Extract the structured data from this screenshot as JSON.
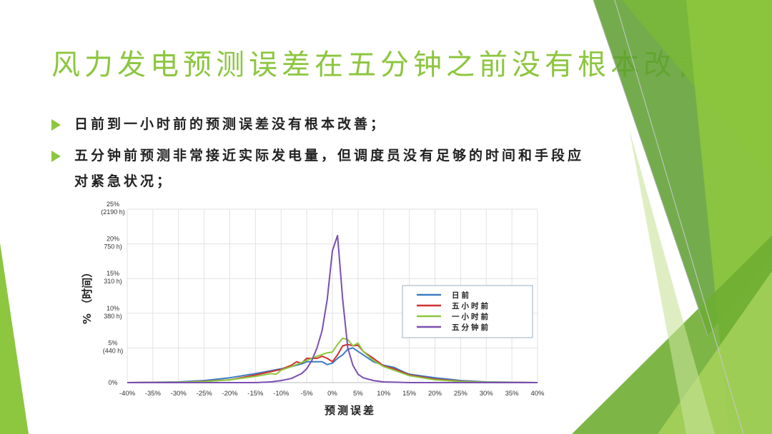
{
  "slide": {
    "title": "风力发电预测误差在五分钟之前没有根本改善",
    "bullets": [
      "日前到一小时前的预测误差没有根本改善；",
      "五分钟前预测非常接近实际发电量，但调度员没有足够的时间和手段应对紧急状况；"
    ],
    "accent": "#8dc63f"
  },
  "chart_data": {
    "type": "line",
    "title": "",
    "xlabel": "预测误差",
    "ylabel": "% （时间）",
    "xlim": [
      -40,
      40
    ],
    "ylim": [
      0,
      25
    ],
    "grid": true,
    "legend": "right",
    "x_ticks": [
      "-40%",
      "-35%",
      "-30%",
      "-25%",
      "-20%",
      "-15%",
      "-10%",
      "-5%",
      "0%",
      "5%",
      "10%",
      "15%",
      "20%",
      "25%",
      "30%",
      "35%",
      "40%"
    ],
    "y_ticks": [
      {
        "value": 0,
        "line1": "0%",
        "line2": ""
      },
      {
        "value": 5,
        "line1": "5%",
        "line2": "(440 h)"
      },
      {
        "value": 10,
        "line1": "10%",
        "line2": "380 h)"
      },
      {
        "value": 15,
        "line1": "15%",
        "line2": "310 h)"
      },
      {
        "value": 20,
        "line1": "20%",
        "line2": "750 h)"
      },
      {
        "value": 25,
        "line1": "25%",
        "line2": "(2190 h)"
      }
    ],
    "series": [
      {
        "name": "日前",
        "color": "#3b7dc4",
        "points": [
          [
            -40,
            0
          ],
          [
            -30,
            0.1
          ],
          [
            -25,
            0.3
          ],
          [
            -20,
            0.7
          ],
          [
            -15,
            1.3
          ],
          [
            -10,
            2
          ],
          [
            -8,
            2.3
          ],
          [
            -6,
            2.7
          ],
          [
            -5,
            3
          ],
          [
            -3,
            3
          ],
          [
            -2,
            3
          ],
          [
            -1,
            2.6
          ],
          [
            0,
            2.8
          ],
          [
            1,
            3.5
          ],
          [
            2,
            4
          ],
          [
            3,
            4.8
          ],
          [
            4,
            5
          ],
          [
            5,
            4.5
          ],
          [
            6,
            4
          ],
          [
            8,
            3
          ],
          [
            10,
            2.5
          ],
          [
            12,
            2.2
          ],
          [
            14,
            1.5
          ],
          [
            15,
            1.2
          ],
          [
            17,
            1
          ],
          [
            20,
            0.7
          ],
          [
            25,
            0.3
          ],
          [
            30,
            0.1
          ],
          [
            40,
            0
          ]
        ]
      },
      {
        "name": "五小时前",
        "color": "#d03030",
        "points": [
          [
            -40,
            0
          ],
          [
            -30,
            0.05
          ],
          [
            -25,
            0.2
          ],
          [
            -20,
            0.4
          ],
          [
            -15,
            1.1
          ],
          [
            -10,
            1.9
          ],
          [
            -8,
            2.5
          ],
          [
            -7,
            3
          ],
          [
            -6,
            2.8
          ],
          [
            -5,
            3.5
          ],
          [
            -3,
            3.5
          ],
          [
            -2,
            3.8
          ],
          [
            -1,
            3.5
          ],
          [
            0,
            3
          ],
          [
            1,
            4
          ],
          [
            2,
            5.3
          ],
          [
            3,
            5.5
          ],
          [
            4,
            5.3
          ],
          [
            5,
            5.4
          ],
          [
            6,
            4.5
          ],
          [
            8,
            3.5
          ],
          [
            10,
            2.4
          ],
          [
            12,
            2
          ],
          [
            15,
            1.1
          ],
          [
            20,
            0.5
          ],
          [
            25,
            0.2
          ],
          [
            30,
            0.05
          ],
          [
            40,
            0
          ]
        ]
      },
      {
        "name": "一小时前",
        "color": "#8dc63f",
        "points": [
          [
            -40,
            0
          ],
          [
            -30,
            0.05
          ],
          [
            -25,
            0.15
          ],
          [
            -20,
            0.4
          ],
          [
            -15,
            0.9
          ],
          [
            -12,
            1.3
          ],
          [
            -11,
            1.2
          ],
          [
            -10,
            1.8
          ],
          [
            -8,
            2.3
          ],
          [
            -5,
            3.2
          ],
          [
            -3,
            3.8
          ],
          [
            -1,
            4.3
          ],
          [
            0,
            4.4
          ],
          [
            1,
            5.5
          ],
          [
            2,
            6.4
          ],
          [
            3,
            6.2
          ],
          [
            4,
            5.3
          ],
          [
            5,
            5.7
          ],
          [
            6,
            4.5
          ],
          [
            8,
            3.2
          ],
          [
            10,
            2.3
          ],
          [
            12,
            1.8
          ],
          [
            15,
            1
          ],
          [
            20,
            0.4
          ],
          [
            25,
            0.15
          ],
          [
            30,
            0.05
          ],
          [
            40,
            0
          ]
        ]
      },
      {
        "name": "五分钟前",
        "color": "#7b4fb0",
        "points": [
          [
            -40,
            0
          ],
          [
            -15,
            0
          ],
          [
            -12,
            0.1
          ],
          [
            -10,
            0.3
          ],
          [
            -8,
            0.6
          ],
          [
            -6,
            1.3
          ],
          [
            -5,
            2
          ],
          [
            -4,
            3.2
          ],
          [
            -3,
            5
          ],
          [
            -2,
            7.5
          ],
          [
            -1,
            12
          ],
          [
            0,
            19
          ],
          [
            1,
            21.2
          ],
          [
            2,
            12
          ],
          [
            3,
            5
          ],
          [
            4,
            2.5
          ],
          [
            5,
            1.2
          ],
          [
            6,
            0.7
          ],
          [
            8,
            0.3
          ],
          [
            10,
            0.1
          ],
          [
            15,
            0
          ],
          [
            40,
            0
          ]
        ]
      }
    ]
  }
}
